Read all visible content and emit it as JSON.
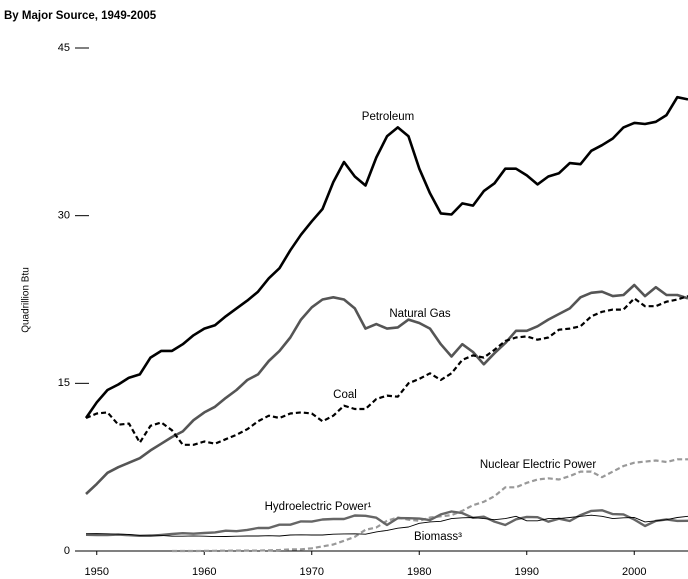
{
  "chart_data": {
    "type": "line",
    "title": "By Major Source, 1949-2005",
    "ylabel": "Quadrillion Btu",
    "x": [
      1949,
      1950,
      1951,
      1952,
      1953,
      1954,
      1955,
      1956,
      1957,
      1958,
      1959,
      1960,
      1961,
      1962,
      1963,
      1964,
      1965,
      1966,
      1967,
      1968,
      1969,
      1970,
      1971,
      1972,
      1973,
      1974,
      1975,
      1976,
      1977,
      1978,
      1979,
      1980,
      1981,
      1982,
      1983,
      1984,
      1985,
      1986,
      1987,
      1988,
      1989,
      1990,
      1991,
      1992,
      1993,
      1994,
      1995,
      1996,
      1997,
      1998,
      1999,
      2000,
      2001,
      2002,
      2003,
      2004,
      2005
    ],
    "xlim": [
      1949,
      2005
    ],
    "xticks": [
      1950,
      1960,
      1970,
      1980,
      1990,
      2000
    ],
    "ylim": [
      0,
      45
    ],
    "yticks": [
      0,
      15,
      30,
      45
    ],
    "series": [
      {
        "name": "Petroleum",
        "color": "#000000",
        "dashed": false,
        "values": [
          11.9,
          13.3,
          14.4,
          14.9,
          15.5,
          15.8,
          17.3,
          17.9,
          17.9,
          18.5,
          19.3,
          19.9,
          20.2,
          21.0,
          21.7,
          22.4,
          23.2,
          24.4,
          25.3,
          26.9,
          28.3,
          29.5,
          30.6,
          33.0,
          34.8,
          33.5,
          32.7,
          35.2,
          37.1,
          37.9,
          37.1,
          34.2,
          32.0,
          30.2,
          30.1,
          31.1,
          30.9,
          32.2,
          32.9,
          34.2,
          34.2,
          33.6,
          32.8,
          33.5,
          33.8,
          34.7,
          34.6,
          35.8,
          36.3,
          36.9,
          37.9,
          38.3,
          38.2,
          38.4,
          39.0,
          40.6,
          40.4
        ]
      },
      {
        "name": "Natural Gas",
        "color": "#555555",
        "dashed": false,
        "values": [
          5.1,
          6.0,
          7.0,
          7.5,
          7.9,
          8.3,
          9.0,
          9.6,
          10.2,
          10.7,
          11.7,
          12.4,
          12.9,
          13.7,
          14.4,
          15.3,
          15.8,
          17.0,
          17.9,
          19.1,
          20.7,
          21.8,
          22.5,
          22.7,
          22.5,
          21.7,
          19.9,
          20.3,
          19.9,
          20.0,
          20.7,
          20.4,
          19.9,
          18.5,
          17.4,
          18.5,
          17.8,
          16.7,
          17.7,
          18.6,
          19.7,
          19.7,
          20.1,
          20.7,
          21.2,
          21.7,
          22.7,
          23.1,
          23.2,
          22.8,
          22.9,
          23.8,
          22.8,
          23.6,
          22.9,
          22.9,
          22.6
        ]
      },
      {
        "name": "Coal",
        "color": "#000000",
        "dashed": true,
        "values": [
          11.9,
          12.3,
          12.4,
          11.3,
          11.4,
          9.7,
          11.2,
          11.5,
          10.8,
          9.5,
          9.5,
          9.8,
          9.6,
          10.0,
          10.4,
          10.9,
          11.6,
          12.1,
          11.9,
          12.3,
          12.4,
          12.3,
          11.6,
          12.1,
          13.0,
          12.7,
          12.7,
          13.6,
          13.9,
          13.8,
          15.0,
          15.4,
          15.9,
          15.3,
          15.9,
          17.1,
          17.5,
          17.3,
          18.0,
          18.8,
          19.1,
          19.2,
          18.9,
          19.1,
          19.8,
          19.9,
          20.1,
          21.0,
          21.4,
          21.6,
          21.6,
          22.6,
          21.9,
          21.9,
          22.3,
          22.5,
          22.8
        ]
      },
      {
        "name": "Nuclear Electric Power",
        "color": "#999999",
        "dashed": true,
        "values": [
          null,
          null,
          null,
          null,
          null,
          null,
          null,
          null,
          0,
          0,
          0,
          0.01,
          0.02,
          0.03,
          0.04,
          0.04,
          0.04,
          0.06,
          0.09,
          0.14,
          0.15,
          0.24,
          0.41,
          0.58,
          0.91,
          1.27,
          1.9,
          2.1,
          2.7,
          3.0,
          2.8,
          2.7,
          3.0,
          3.1,
          3.2,
          3.6,
          4.1,
          4.4,
          4.9,
          5.7,
          5.7,
          6.1,
          6.4,
          6.5,
          6.4,
          6.7,
          7.1,
          7.1,
          6.6,
          7.1,
          7.6,
          7.9,
          8.0,
          8.1,
          7.96,
          8.2,
          8.2
        ]
      },
      {
        "name": "Hydroelectric Power¹",
        "color": "#666666",
        "dashed": false,
        "values": [
          1.45,
          1.42,
          1.42,
          1.47,
          1.41,
          1.36,
          1.36,
          1.43,
          1.52,
          1.59,
          1.55,
          1.61,
          1.66,
          1.82,
          1.77,
          1.89,
          2.06,
          2.06,
          2.35,
          2.35,
          2.65,
          2.63,
          2.82,
          2.86,
          2.86,
          3.18,
          3.15,
          2.98,
          2.33,
          2.94,
          2.93,
          2.9,
          2.76,
          3.27,
          3.53,
          3.39,
          2.97,
          3.07,
          2.63,
          2.33,
          2.84,
          3.05,
          3.02,
          2.62,
          2.89,
          2.68,
          3.21,
          3.59,
          3.64,
          3.3,
          3.27,
          2.81,
          2.24,
          2.69,
          2.83,
          2.69,
          2.7
        ]
      },
      {
        "name": "Biomass³",
        "color": "#000000",
        "dashed": false,
        "values": [
          1.55,
          1.56,
          1.54,
          1.5,
          1.48,
          1.4,
          1.42,
          1.4,
          1.32,
          1.32,
          1.35,
          1.32,
          1.29,
          1.3,
          1.32,
          1.34,
          1.34,
          1.37,
          1.34,
          1.43,
          1.45,
          1.43,
          1.43,
          1.5,
          1.53,
          1.54,
          1.5,
          1.71,
          1.84,
          2.04,
          2.15,
          2.48,
          2.6,
          2.66,
          2.9,
          2.97,
          3.0,
          2.9,
          2.8,
          2.9,
          3.1,
          2.7,
          2.7,
          2.9,
          2.9,
          3.0,
          3.1,
          3.2,
          3.1,
          2.9,
          2.97,
          3.0,
          2.6,
          2.7,
          2.8,
          3.0,
          3.1
        ]
      }
    ]
  }
}
